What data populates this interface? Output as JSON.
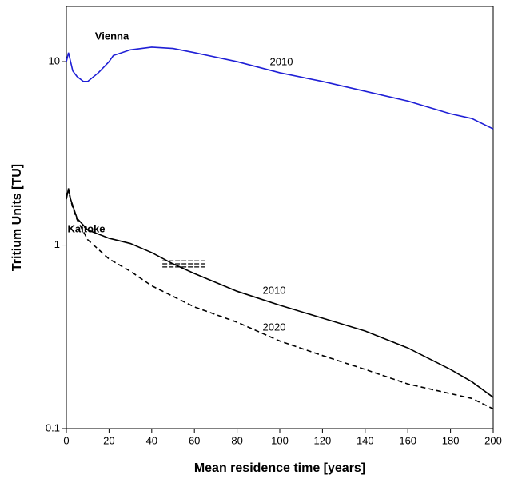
{
  "chart_data": {
    "type": "line",
    "log_y": true,
    "xlabel": "Mean residence time [years]",
    "ylabel": "Tritium Units [TU]",
    "xlim": [
      0,
      200
    ],
    "xticks": [
      0,
      20,
      40,
      60,
      80,
      100,
      120,
      140,
      160,
      180,
      200
    ],
    "ylim": [
      0.1,
      20
    ],
    "yticks": [
      0.1,
      1,
      10
    ],
    "series": [
      {
        "name": "Vienna",
        "label": "2010",
        "color": "#1f1fd6",
        "dashed": false,
        "x": [
          0,
          1,
          3,
          5,
          8,
          10,
          15,
          20,
          22,
          30,
          40,
          50,
          60,
          80,
          100,
          120,
          140,
          160,
          180,
          190,
          200
        ],
        "values": [
          10,
          11.2,
          8.9,
          8.3,
          7.8,
          7.8,
          8.7,
          10,
          10.8,
          11.6,
          12,
          11.8,
          11.2,
          10,
          8.7,
          7.8,
          6.9,
          6.1,
          5.2,
          4.9,
          4.3
        ]
      },
      {
        "name": "Kaitoke",
        "label": "2010",
        "color": "#000000",
        "dashed": false,
        "x": [
          0,
          1,
          2,
          5,
          10,
          20,
          30,
          40,
          50,
          60,
          80,
          100,
          120,
          140,
          160,
          180,
          190,
          200
        ],
        "values": [
          1.78,
          2.04,
          1.78,
          1.4,
          1.21,
          1.09,
          1.02,
          0.91,
          0.79,
          0.7,
          0.56,
          0.47,
          0.4,
          0.34,
          0.275,
          0.21,
          0.18,
          0.148
        ]
      },
      {
        "label": "2020",
        "color": "#000000",
        "dashed": true,
        "x": [
          0,
          1,
          3,
          5,
          10,
          20,
          30,
          40,
          60,
          80,
          100,
          120,
          140,
          160,
          180,
          190,
          200
        ],
        "values": [
          1.87,
          1.96,
          1.6,
          1.38,
          1.07,
          0.84,
          0.72,
          0.6,
          0.46,
          0.38,
          0.3,
          0.25,
          0.21,
          0.175,
          0.155,
          0.146,
          0.128
        ]
      }
    ],
    "reference_lines": [
      {
        "x": [
          45,
          65
        ],
        "value": 0.82
      },
      {
        "x": [
          45,
          65
        ],
        "value": 0.79
      },
      {
        "x": [
          45,
          65
        ],
        "value": 0.76
      }
    ]
  }
}
